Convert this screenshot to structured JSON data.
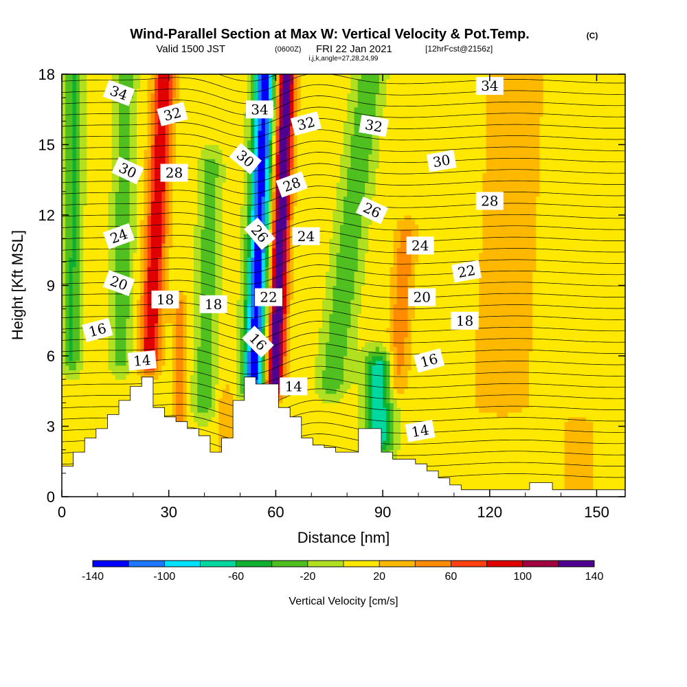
{
  "chart_data": {
    "type": "heatmap",
    "title": "Wind-Parallel Section at Max W: Vertical Velocity & Pot.Temp.",
    "title_mark": "(C)",
    "subtitle": {
      "valid": "Valid 1500 JST",
      "utc": "(0600Z)",
      "date": "FRI 22 Jan 2021",
      "forecast": "[12hrFcst@2156z]"
    },
    "indices": "i,j,k,angle=27,28,24,99",
    "xlabel": "Distance [nm]",
    "ylabel": "Height [Kft MSL]",
    "xlim": [
      0,
      158
    ],
    "ylim": [
      0,
      18
    ],
    "x_ticks": [
      "0",
      "30",
      "60",
      "90",
      "120",
      "150"
    ],
    "y_ticks": [
      "0",
      "3",
      "6",
      "9",
      "12",
      "15",
      "18"
    ],
    "colorbar": {
      "label": "Vertical Velocity [cm/s]",
      "ticks": [
        "-140",
        "-100",
        "-60",
        "-20",
        "20",
        "60",
        "100",
        "140"
      ],
      "levels": [
        -140,
        -120,
        -100,
        -80,
        -60,
        -40,
        -20,
        0,
        20,
        40,
        60,
        80,
        100,
        120,
        140
      ],
      "colors": [
        "#0000ff",
        "#1e78ff",
        "#00e0ff",
        "#00d8a0",
        "#10b030",
        "#50c020",
        "#b0e020",
        "#ffe800",
        "#ffb800",
        "#ff8c00",
        "#ff4010",
        "#e00000",
        "#a00040",
        "#500090"
      ]
    },
    "color_scale": [
      "#0000ff",
      "#1e78ff",
      "#00e0ff",
      "#00d8a0",
      "#10b030",
      "#50c020",
      "#b0e020",
      "#ffe800",
      "#ffb800",
      "#ff8c00",
      "#ff4010",
      "#e00000",
      "#a00040",
      "#500090"
    ],
    "velocity_features": [
      {
        "x_center": 55,
        "x_width": 3,
        "peak": -140,
        "z_min": 5,
        "z_max": 18,
        "lean": 0.25
      },
      {
        "x_center": 61,
        "x_width": 2.5,
        "peak": 140,
        "z_min": 5,
        "z_max": 18,
        "lean": 0.25
      },
      {
        "x_center": 26,
        "x_width": 3,
        "peak": 90,
        "z_min": 6,
        "z_max": 18,
        "lean": 0.35
      },
      {
        "x_center": 3,
        "x_width": 2.5,
        "peak": -50,
        "z_min": 6,
        "z_max": 18,
        "lean": 0.05
      },
      {
        "x_center": 17,
        "x_width": 3,
        "peak": -40,
        "z_min": 6,
        "z_max": 18,
        "lean": 0.1
      },
      {
        "x_center": 41,
        "x_width": 3,
        "peak": -40,
        "z_min": 4,
        "z_max": 14,
        "lean": 0.2
      },
      {
        "x_center": 89,
        "x_width": 4,
        "peak": -80,
        "z_min": 2.5,
        "z_max": 5.5,
        "lean": 0
      },
      {
        "x_center": 80,
        "x_width": 4,
        "peak": -45,
        "z_min": 5,
        "z_max": 18,
        "lean": 0.8
      },
      {
        "x_center": 96,
        "x_width": 3,
        "peak": 45,
        "z_min": 5,
        "z_max": 11,
        "lean": 0.4
      },
      {
        "x_center": 33,
        "x_width": 2,
        "peak": 40,
        "z_min": 3,
        "z_max": 8,
        "lean": 0
      },
      {
        "x_center": 46,
        "x_width": 2,
        "peak": 30,
        "z_min": 2,
        "z_max": 4,
        "lean": 0
      },
      {
        "x_center": 125,
        "x_width": 12,
        "peak": 18,
        "z_min": 4,
        "z_max": 18,
        "lean": 0.3
      },
      {
        "x_center": 145,
        "x_width": 8,
        "peak": 15,
        "z_min": 0,
        "z_max": 3,
        "lean": 0
      }
    ],
    "isentropes": {
      "levels": [
        14,
        16,
        18,
        20,
        22,
        24,
        26,
        28,
        30,
        32,
        34
      ],
      "labels": [
        {
          "text": "34",
          "x": 16,
          "z": 17.2,
          "angle": 20
        },
        {
          "text": "32",
          "x": 31,
          "z": 16.3,
          "angle": -15
        },
        {
          "text": "34",
          "x": 55.5,
          "z": 16.5,
          "angle": 0
        },
        {
          "text": "32",
          "x": 68.5,
          "z": 15.9,
          "angle": -15
        },
        {
          "text": "32",
          "x": 87.5,
          "z": 15.8,
          "angle": 10
        },
        {
          "text": "34",
          "x": 120,
          "z": 17.5,
          "angle": 0
        },
        {
          "text": "30",
          "x": 18.5,
          "z": 13.9,
          "angle": 25
        },
        {
          "text": "28",
          "x": 31.5,
          "z": 13.8,
          "angle": 0
        },
        {
          "text": "30",
          "x": 51.5,
          "z": 14.4,
          "angle": 40
        },
        {
          "text": "28",
          "x": 64.5,
          "z": 13.3,
          "angle": -20
        },
        {
          "text": "30",
          "x": 106.5,
          "z": 14.3,
          "angle": -10
        },
        {
          "text": "28",
          "x": 120,
          "z": 12.6,
          "angle": 0
        },
        {
          "text": "26",
          "x": 87,
          "z": 12.2,
          "angle": 25
        },
        {
          "text": "24",
          "x": 16,
          "z": 11.1,
          "angle": -20
        },
        {
          "text": "26",
          "x": 55.5,
          "z": 11.2,
          "angle": 50
        },
        {
          "text": "24",
          "x": 68.5,
          "z": 11.1,
          "angle": 0
        },
        {
          "text": "24",
          "x": 100.5,
          "z": 10.7,
          "angle": 0
        },
        {
          "text": "22",
          "x": 113.5,
          "z": 9.6,
          "angle": -10
        },
        {
          "text": "20",
          "x": 16,
          "z": 9.1,
          "angle": 20
        },
        {
          "text": "18",
          "x": 29,
          "z": 8.4,
          "angle": 0
        },
        {
          "text": "18",
          "x": 42.5,
          "z": 8.2,
          "angle": 0
        },
        {
          "text": "22",
          "x": 58,
          "z": 8.5,
          "angle": 0
        },
        {
          "text": "20",
          "x": 101,
          "z": 8.5,
          "angle": 0
        },
        {
          "text": "18",
          "x": 113,
          "z": 7.5,
          "angle": 0
        },
        {
          "text": "16",
          "x": 10,
          "z": 7.1,
          "angle": -15
        },
        {
          "text": "16",
          "x": 55,
          "z": 6.6,
          "angle": 45
        },
        {
          "text": "16",
          "x": 103,
          "z": 5.8,
          "angle": -15
        },
        {
          "text": "14",
          "x": 22.5,
          "z": 5.8,
          "angle": -5
        },
        {
          "text": "14",
          "x": 65,
          "z": 4.7,
          "angle": 0
        },
        {
          "text": "14",
          "x": 100.5,
          "z": 2.8,
          "angle": -10
        }
      ]
    },
    "terrain": {
      "x": [
        0,
        3.2,
        3.2,
        6.4,
        6.4,
        9.6,
        9.6,
        12.8,
        12.8,
        16,
        16,
        19.2,
        19.2,
        22.4,
        22.4,
        25.6,
        25.6,
        28.8,
        28.8,
        32,
        32,
        35.2,
        35.2,
        38.4,
        38.4,
        41.6,
        41.6,
        44.8,
        44.8,
        48,
        48,
        51.2,
        51.2,
        54.4,
        54.4,
        57.6,
        57.6,
        60.8,
        60.8,
        64,
        64,
        67.2,
        67.2,
        70.4,
        70.4,
        73.6,
        73.6,
        76.8,
        76.8,
        80,
        80,
        83.2,
        83.2,
        86.4,
        86.4,
        89.6,
        89.6,
        92.8,
        92.8,
        96,
        96,
        99.2,
        99.2,
        102.4,
        102.4,
        105.6,
        105.6,
        108.8,
        108.8,
        112,
        112,
        115.2,
        115.2,
        118.4,
        118.4,
        121.6,
        121.6,
        124.8,
        124.8,
        128,
        128,
        131.2,
        131.2,
        134.4,
        134.4,
        137.6,
        137.6,
        140.8,
        140.8,
        144,
        144,
        147.2,
        147.2,
        150.4,
        150.4,
        153.6,
        153.6,
        158
      ],
      "z": [
        1.3,
        1.3,
        1.9,
        1.9,
        2.5,
        2.5,
        2.9,
        2.9,
        3.5,
        3.5,
        4.1,
        4.1,
        4.7,
        4.7,
        5.1,
        5.1,
        3.8,
        3.8,
        3.4,
        3.4,
        3.2,
        3.2,
        2.9,
        2.9,
        2.6,
        2.6,
        1.9,
        1.9,
        2.5,
        2.5,
        4.1,
        4.1,
        5.1,
        5.1,
        4.8,
        4.8,
        4.8,
        4.8,
        3.8,
        3.8,
        3.4,
        3.4,
        2.5,
        2.5,
        2.2,
        2.2,
        2.1,
        2.1,
        1.9,
        1.9,
        1.9,
        1.9,
        2.9,
        2.9,
        2.9,
        2.9,
        1.9,
        1.9,
        1.6,
        1.6,
        1.6,
        1.6,
        1.4,
        1.4,
        1.1,
        1.1,
        0.8,
        0.8,
        0.5,
        0.5,
        0.3,
        0.3,
        0.3,
        0.3,
        0.3,
        0.3,
        0.3,
        0.3,
        0.3,
        0.3,
        0.3,
        0.3,
        0.6,
        0.6,
        0.6,
        0.6,
        0.3,
        0.3,
        0.3,
        0.3,
        0.3,
        0.3,
        0.3,
        0.3,
        0.3,
        0.3,
        0.3,
        0.3
      ]
    }
  }
}
